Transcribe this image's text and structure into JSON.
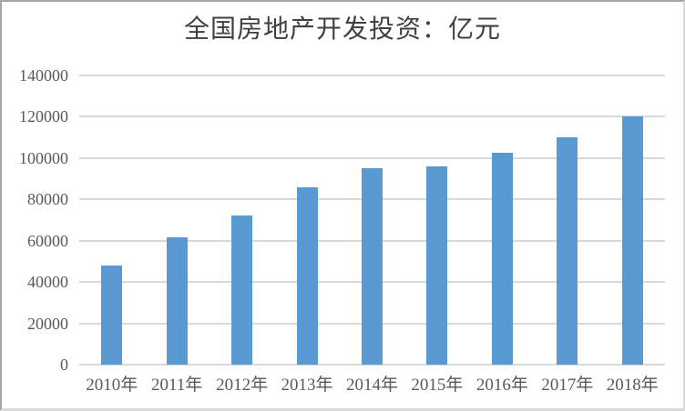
{
  "chart_data": {
    "type": "bar",
    "title": "全国房地产开发投资：亿元",
    "categories": [
      "2010年",
      "2011年",
      "2012年",
      "2013年",
      "2014年",
      "2015年",
      "2016年",
      "2017年",
      "2018年"
    ],
    "values": [
      48000,
      61600,
      72000,
      86000,
      95000,
      96000,
      102600,
      110000,
      120000
    ],
    "xlabel": "",
    "ylabel": "",
    "ylim": [
      0,
      140000
    ],
    "ytick_step": 20000,
    "ytick_labels": [
      "0",
      "20000",
      "40000",
      "60000",
      "80000",
      "100000",
      "120000",
      "140000"
    ],
    "grid": true,
    "legend_position": "none",
    "colors": {
      "bar": "#5A9AD3",
      "gridline": "#D9D9D9",
      "axis_text": "#595959",
      "title_text": "#404040",
      "background": "#FFFFFF"
    }
  }
}
